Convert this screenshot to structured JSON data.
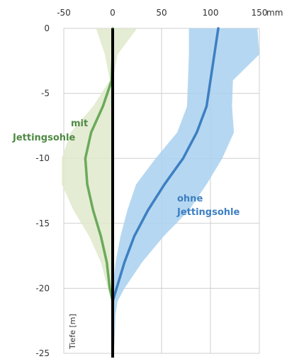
{
  "chart_data": {
    "type": "line",
    "title": "",
    "xlabel": "",
    "ylabel": "Tiefe [m]",
    "x_unit": "mm",
    "xlim": [
      -50,
      150
    ],
    "ylim": [
      -25,
      0
    ],
    "x_ticks": [
      -50,
      0,
      50,
      100,
      150
    ],
    "y_ticks": [
      0,
      -5,
      -10,
      -15,
      -20,
      -25
    ],
    "grid": true,
    "annotations": [
      {
        "lines": [
          "mit",
          "Jettingsohle"
        ],
        "series": "mit Jettingsohle"
      },
      {
        "lines": [
          "ohne",
          "Jettingsohle"
        ],
        "series": "ohne Jettingsohle"
      }
    ],
    "series": [
      {
        "name": "mit Jettingsohle",
        "color": "#6aaa5a",
        "band_color": "#dfe9cc",
        "depth": [
          0,
          -2,
          -4,
          -6,
          -8,
          -10,
          -12,
          -14,
          -16,
          -18,
          -20,
          -21,
          -22,
          -24,
          -25
        ],
        "mean": [
          0,
          0,
          -1,
          -10,
          -22,
          -28,
          -26,
          -20,
          -12,
          -6,
          -3,
          0,
          0,
          0,
          0
        ],
        "lower": [
          -17,
          -8,
          -3,
          -20,
          -43,
          -52,
          -52,
          -40,
          -24,
          -12,
          -5,
          0,
          0,
          0,
          0
        ],
        "upper": [
          25,
          5,
          0,
          0,
          0,
          0,
          0,
          0,
          0,
          0,
          0,
          0,
          0,
          0,
          0
        ]
      },
      {
        "name": "ohne Jettingsohle",
        "color": "#3d7fc2",
        "band_color": "#a8d0ee",
        "depth": [
          0,
          -2,
          -4,
          -6,
          -8,
          -10,
          -12,
          -14,
          -16,
          -18,
          -20,
          -21,
          -22,
          -24,
          -25
        ],
        "mean": [
          108,
          104,
          100,
          96,
          86,
          72,
          53,
          36,
          22,
          12,
          4,
          0,
          0,
          0,
          0
        ],
        "lower": [
          78,
          78,
          77,
          76,
          66,
          44,
          24,
          15,
          8,
          3,
          0,
          0,
          0,
          0,
          0
        ],
        "upper": [
          148,
          150,
          123,
          122,
          124,
          112,
          96,
          78,
          52,
          30,
          12,
          5,
          3,
          2,
          1
        ]
      }
    ]
  }
}
